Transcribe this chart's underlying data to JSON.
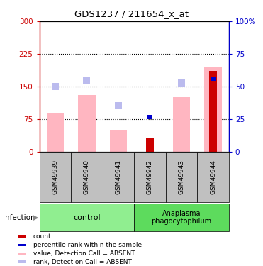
{
  "title": "GDS1237 / 211654_x_at",
  "samples": [
    "GSM49939",
    "GSM49940",
    "GSM49941",
    "GSM49942",
    "GSM49943",
    "GSM49944"
  ],
  "pink_bar_values": [
    90,
    130,
    50,
    0,
    125,
    195
  ],
  "light_blue_squares_left_scale": [
    150,
    163,
    105,
    0,
    158,
    0
  ],
  "dark_red_bars": [
    0,
    0,
    0,
    30,
    0,
    185
  ],
  "blue_squares_left_scale": [
    0,
    0,
    0,
    80,
    0,
    168
  ],
  "ylim_left": [
    0,
    300
  ],
  "ylim_right": [
    0,
    100
  ],
  "yticks_left": [
    0,
    75,
    150,
    225,
    300
  ],
  "yticks_right": [
    0,
    25,
    50,
    75,
    100
  ],
  "ytick_labels_left": [
    "0",
    "75",
    "150",
    "225",
    "300"
  ],
  "ytick_labels_right": [
    "0",
    "25",
    "50",
    "75",
    "100%"
  ],
  "control_label": "control",
  "infection_label": "Anaplasma\nphagocytophilum",
  "infection_row_label": "infection",
  "legend_labels": [
    "count",
    "percentile rank within the sample",
    "value, Detection Call = ABSENT",
    "rank, Detection Call = ABSENT"
  ],
  "legend_colors": [
    "#CC0000",
    "#0000CC",
    "#FFB6C1",
    "#BBBBEE"
  ],
  "left_axis_color": "#CC0000",
  "right_axis_color": "#0000CC",
  "pink_color": "#FFB6C1",
  "light_blue_color": "#BBBBEE",
  "dark_red_color": "#CC0000",
  "blue_color": "#0000CC",
  "control_bg": "#90EE90",
  "infection_bg": "#5DDB5D",
  "sample_bg": "#C0C0C0"
}
